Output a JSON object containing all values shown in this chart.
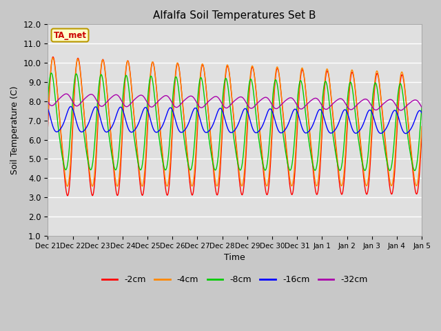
{
  "title": "Alfalfa Soil Temperatures Set B",
  "xlabel": "Time",
  "ylabel": "Soil Temperature (C)",
  "ylim": [
    1.0,
    12.0
  ],
  "yticks": [
    1.0,
    2.0,
    3.0,
    4.0,
    5.0,
    6.0,
    7.0,
    8.0,
    9.0,
    10.0,
    11.0,
    12.0
  ],
  "xtick_labels": [
    "Dec 21",
    "Dec 22",
    "Dec 23",
    "Dec 24",
    "Dec 25",
    "Dec 26",
    "Dec 27",
    "Dec 28",
    "Dec 29",
    "Dec 30",
    "Dec 31",
    "Jan 1",
    "Jan 2",
    "Jan 3",
    "Jan 4",
    "Jan 5"
  ],
  "annotation_text": "TA_met",
  "annotation_bg": "#FFFFCC",
  "annotation_border": "#BB9900",
  "annotation_color": "#CC0000",
  "series": [
    {
      "label": "-2cm",
      "color": "#FF0000",
      "amp": 4.0,
      "phase": 0.0,
      "mean": 6.7,
      "phase_shift_per_day": 0.0,
      "amp_trend": -0.04,
      "mean_trend": -0.03
    },
    {
      "label": "-4cm",
      "color": "#FF8800",
      "amp": 3.7,
      "phase": 0.05,
      "mean": 6.9,
      "phase_shift_per_day": 0.0,
      "amp_trend": -0.03,
      "mean_trend": -0.025
    },
    {
      "label": "-8cm",
      "color": "#00CC00",
      "amp": 2.8,
      "phase": 0.5,
      "mean": 6.8,
      "phase_shift_per_day": 0.0,
      "amp_trend": -0.02,
      "mean_trend": -0.02
    },
    {
      "label": "-16cm",
      "color": "#0000FF",
      "amp": 0.75,
      "phase": 2.2,
      "mean": 7.0,
      "phase_shift_per_day": 0.0,
      "amp_trend": -0.005,
      "mean_trend": -0.01
    },
    {
      "label": "-32cm",
      "color": "#AA00AA",
      "amp": 0.35,
      "phase": 3.5,
      "mean": 8.1,
      "phase_shift_per_day": 0.0,
      "amp_trend": -0.003,
      "mean_trend": -0.02
    }
  ],
  "n_days": 15,
  "points_per_day": 144,
  "period": 1.0,
  "fig_facecolor": "#C8C8C8",
  "ax_facecolor": "#E0E0E0"
}
